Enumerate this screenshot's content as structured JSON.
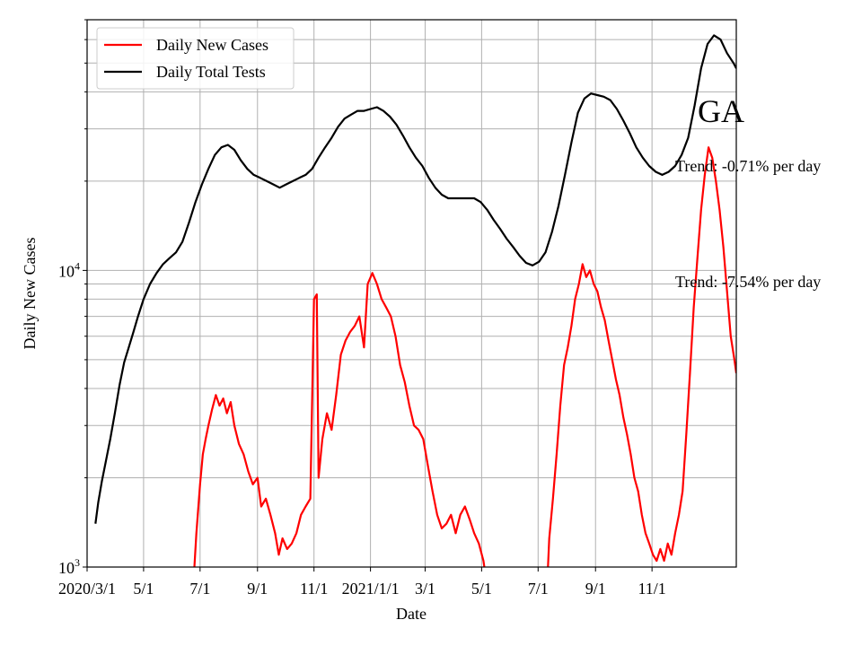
{
  "chart_data": {
    "type": "line",
    "title": "",
    "panel_label": "GA",
    "xlabel": "Date",
    "ylabel": "Daily New Cases",
    "y_scale": "log",
    "ylim": [
      1000,
      70000
    ],
    "xlim": [
      "2020-03-01",
      "2022-01-31"
    ],
    "grid": true,
    "grid_minor_y": true,
    "legend_position": "top-left",
    "x_ticks": [
      {
        "date": "2020-03-01",
        "label": "2020/3/1"
      },
      {
        "date": "2020-05-01",
        "label": "5/1"
      },
      {
        "date": "2020-07-01",
        "label": "7/1"
      },
      {
        "date": "2020-09-01",
        "label": "9/1"
      },
      {
        "date": "2020-11-01",
        "label": "11/1"
      },
      {
        "date": "2021-01-01",
        "label": "2021/1/1"
      },
      {
        "date": "2021-03-01",
        "label": "3/1"
      },
      {
        "date": "2021-05-01",
        "label": "5/1"
      },
      {
        "date": "2021-07-01",
        "label": "7/1"
      },
      {
        "date": "2021-09-01",
        "label": "9/1"
      },
      {
        "date": "2021-11-01",
        "label": "11/1"
      }
    ],
    "y_ticks": [
      {
        "value": 1000,
        "base": "10",
        "exp": "3"
      },
      {
        "value": 10000,
        "base": "10",
        "exp": "4"
      }
    ],
    "annotations": [
      {
        "text": "Trend: -0.71% per day",
        "series": "Daily Total Tests"
      },
      {
        "text": "Trend: -7.54% per day",
        "series": "Daily New Cases"
      }
    ],
    "series": [
      {
        "name": "Daily New Cases",
        "color": "#ff0000",
        "points": [
          [
            "2020-06-24",
            900
          ],
          [
            "2020-06-27",
            1300
          ],
          [
            "2020-07-01",
            1900
          ],
          [
            "2020-07-04",
            2400
          ],
          [
            "2020-07-07",
            2700
          ],
          [
            "2020-07-10",
            3000
          ],
          [
            "2020-07-14",
            3400
          ],
          [
            "2020-07-18",
            3800
          ],
          [
            "2020-07-22",
            3500
          ],
          [
            "2020-07-26",
            3700
          ],
          [
            "2020-07-30",
            3300
          ],
          [
            "2020-08-03",
            3600
          ],
          [
            "2020-08-07",
            3000
          ],
          [
            "2020-08-12",
            2600
          ],
          [
            "2020-08-17",
            2400
          ],
          [
            "2020-08-22",
            2100
          ],
          [
            "2020-08-27",
            1900
          ],
          [
            "2020-09-01",
            2000
          ],
          [
            "2020-09-05",
            1600
          ],
          [
            "2020-09-10",
            1700
          ],
          [
            "2020-09-15",
            1500
          ],
          [
            "2020-09-20",
            1300
          ],
          [
            "2020-09-24",
            1100
          ],
          [
            "2020-09-28",
            1250
          ],
          [
            "2020-10-03",
            1150
          ],
          [
            "2020-10-08",
            1200
          ],
          [
            "2020-10-13",
            1300
          ],
          [
            "2020-10-18",
            1500
          ],
          [
            "2020-10-23",
            1600
          ],
          [
            "2020-10-28",
            1700
          ],
          [
            "2020-11-01",
            8000
          ],
          [
            "2020-11-04",
            8300
          ],
          [
            "2020-11-06",
            2000
          ],
          [
            "2020-11-10",
            2700
          ],
          [
            "2020-11-15",
            3300
          ],
          [
            "2020-11-20",
            2900
          ],
          [
            "2020-11-25",
            3800
          ],
          [
            "2020-11-30",
            5200
          ],
          [
            "2020-12-05",
            5800
          ],
          [
            "2020-12-10",
            6200
          ],
          [
            "2020-12-15",
            6500
          ],
          [
            "2020-12-20",
            7000
          ],
          [
            "2020-12-25",
            5500
          ],
          [
            "2020-12-29",
            9000
          ],
          [
            "2021-01-03",
            9800
          ],
          [
            "2021-01-08",
            9000
          ],
          [
            "2021-01-13",
            8000
          ],
          [
            "2021-01-18",
            7500
          ],
          [
            "2021-01-23",
            7000
          ],
          [
            "2021-01-28",
            6000
          ],
          [
            "2021-02-02",
            4800
          ],
          [
            "2021-02-07",
            4200
          ],
          [
            "2021-02-12",
            3500
          ],
          [
            "2021-02-17",
            3000
          ],
          [
            "2021-02-22",
            2900
          ],
          [
            "2021-02-27",
            2700
          ],
          [
            "2021-03-04",
            2200
          ],
          [
            "2021-03-09",
            1800
          ],
          [
            "2021-03-14",
            1500
          ],
          [
            "2021-03-19",
            1350
          ],
          [
            "2021-03-24",
            1400
          ],
          [
            "2021-03-29",
            1500
          ],
          [
            "2021-04-03",
            1300
          ],
          [
            "2021-04-08",
            1500
          ],
          [
            "2021-04-13",
            1600
          ],
          [
            "2021-04-18",
            1450
          ],
          [
            "2021-04-23",
            1300
          ],
          [
            "2021-04-28",
            1200
          ],
          [
            "2021-05-03",
            1050
          ],
          [
            "2021-05-05",
            950
          ],
          [
            "2021-07-11",
            900
          ],
          [
            "2021-07-13",
            1250
          ],
          [
            "2021-07-17",
            1700
          ],
          [
            "2021-07-21",
            2400
          ],
          [
            "2021-07-25",
            3500
          ],
          [
            "2021-07-29",
            4800
          ],
          [
            "2021-08-02",
            5500
          ],
          [
            "2021-08-06",
            6500
          ],
          [
            "2021-08-10",
            8000
          ],
          [
            "2021-08-14",
            9000
          ],
          [
            "2021-08-18",
            10500
          ],
          [
            "2021-08-22",
            9500
          ],
          [
            "2021-08-26",
            10000
          ],
          [
            "2021-08-30",
            9000
          ],
          [
            "2021-09-03",
            8500
          ],
          [
            "2021-09-07",
            7500
          ],
          [
            "2021-09-11",
            6800
          ],
          [
            "2021-09-15",
            5800
          ],
          [
            "2021-09-19",
            5000
          ],
          [
            "2021-09-23",
            4300
          ],
          [
            "2021-09-27",
            3800
          ],
          [
            "2021-10-01",
            3200
          ],
          [
            "2021-10-05",
            2800
          ],
          [
            "2021-10-09",
            2400
          ],
          [
            "2021-10-13",
            2000
          ],
          [
            "2021-10-17",
            1800
          ],
          [
            "2021-10-21",
            1500
          ],
          [
            "2021-10-25",
            1300
          ],
          [
            "2021-10-29",
            1200
          ],
          [
            "2021-11-02",
            1100
          ],
          [
            "2021-11-06",
            1050
          ],
          [
            "2021-11-10",
            1150
          ],
          [
            "2021-11-14",
            1050
          ],
          [
            "2021-11-18",
            1200
          ],
          [
            "2021-11-22",
            1100
          ],
          [
            "2021-11-26",
            1300
          ],
          [
            "2021-11-30",
            1500
          ],
          [
            "2021-12-04",
            1800
          ],
          [
            "2021-12-08",
            2800
          ],
          [
            "2021-12-12",
            4500
          ],
          [
            "2021-12-16",
            7500
          ],
          [
            "2021-12-20",
            11000
          ],
          [
            "2021-12-24",
            16000
          ],
          [
            "2021-12-28",
            21000
          ],
          [
            "2022-01-01",
            26000
          ],
          [
            "2022-01-05",
            24000
          ],
          [
            "2022-01-09",
            20000
          ],
          [
            "2022-01-13",
            16000
          ],
          [
            "2022-01-17",
            12000
          ],
          [
            "2022-01-21",
            8500
          ],
          [
            "2022-01-25",
            6000
          ],
          [
            "2022-01-29",
            5000
          ],
          [
            "2022-01-31",
            4500
          ]
        ]
      },
      {
        "name": "Daily Total Tests",
        "color": "#000000",
        "points": [
          [
            "2020-03-10",
            1400
          ],
          [
            "2020-03-13",
            1650
          ],
          [
            "2020-03-17",
            1950
          ],
          [
            "2020-03-21",
            2250
          ],
          [
            "2020-03-26",
            2700
          ],
          [
            "2020-03-31",
            3300
          ],
          [
            "2020-04-05",
            4100
          ],
          [
            "2020-04-10",
            4900
          ],
          [
            "2020-04-15",
            5500
          ],
          [
            "2020-04-20",
            6200
          ],
          [
            "2020-04-25",
            7000
          ],
          [
            "2020-05-01",
            8000
          ],
          [
            "2020-05-08",
            9000
          ],
          [
            "2020-05-15",
            9800
          ],
          [
            "2020-05-22",
            10500
          ],
          [
            "2020-05-29",
            11000
          ],
          [
            "2020-06-05",
            11500
          ],
          [
            "2020-06-12",
            12500
          ],
          [
            "2020-06-19",
            14500
          ],
          [
            "2020-06-26",
            17000
          ],
          [
            "2020-07-03",
            19500
          ],
          [
            "2020-07-10",
            22000
          ],
          [
            "2020-07-17",
            24500
          ],
          [
            "2020-07-24",
            26000
          ],
          [
            "2020-07-31",
            26500
          ],
          [
            "2020-08-07",
            25500
          ],
          [
            "2020-08-14",
            23500
          ],
          [
            "2020-08-21",
            22000
          ],
          [
            "2020-08-28",
            21000
          ],
          [
            "2020-09-04",
            20500
          ],
          [
            "2020-09-11",
            20000
          ],
          [
            "2020-09-18",
            19500
          ],
          [
            "2020-09-25",
            19000
          ],
          [
            "2020-10-02",
            19500
          ],
          [
            "2020-10-09",
            20000
          ],
          [
            "2020-10-16",
            20500
          ],
          [
            "2020-10-23",
            21000
          ],
          [
            "2020-10-30",
            22000
          ],
          [
            "2020-11-06",
            24000
          ],
          [
            "2020-11-13",
            26000
          ],
          [
            "2020-11-20",
            28000
          ],
          [
            "2020-11-27",
            30500
          ],
          [
            "2020-12-04",
            32500
          ],
          [
            "2020-12-11",
            33500
          ],
          [
            "2020-12-18",
            34500
          ],
          [
            "2020-12-25",
            34500
          ],
          [
            "2021-01-01",
            35000
          ],
          [
            "2021-01-08",
            35500
          ],
          [
            "2021-01-15",
            34500
          ],
          [
            "2021-01-22",
            33000
          ],
          [
            "2021-01-29",
            31000
          ],
          [
            "2021-02-05",
            28500
          ],
          [
            "2021-02-12",
            26000
          ],
          [
            "2021-02-19",
            24000
          ],
          [
            "2021-02-26",
            22500
          ],
          [
            "2021-03-05",
            20500
          ],
          [
            "2021-03-12",
            19000
          ],
          [
            "2021-03-19",
            18000
          ],
          [
            "2021-03-26",
            17500
          ],
          [
            "2021-04-02",
            17500
          ],
          [
            "2021-04-09",
            17500
          ],
          [
            "2021-04-16",
            17500
          ],
          [
            "2021-04-23",
            17500
          ],
          [
            "2021-04-30",
            17000
          ],
          [
            "2021-05-07",
            16000
          ],
          [
            "2021-05-14",
            14800
          ],
          [
            "2021-05-21",
            13800
          ],
          [
            "2021-05-28",
            12800
          ],
          [
            "2021-06-04",
            12000
          ],
          [
            "2021-06-11",
            11200
          ],
          [
            "2021-06-18",
            10600
          ],
          [
            "2021-06-25",
            10400
          ],
          [
            "2021-07-02",
            10700
          ],
          [
            "2021-07-09",
            11500
          ],
          [
            "2021-07-16",
            13500
          ],
          [
            "2021-07-23",
            16500
          ],
          [
            "2021-07-30",
            21000
          ],
          [
            "2021-08-06",
            27000
          ],
          [
            "2021-08-13",
            34000
          ],
          [
            "2021-08-20",
            38000
          ],
          [
            "2021-08-27",
            39500
          ],
          [
            "2021-09-03",
            39000
          ],
          [
            "2021-09-10",
            38500
          ],
          [
            "2021-09-17",
            37500
          ],
          [
            "2021-09-24",
            35000
          ],
          [
            "2021-10-01",
            32000
          ],
          [
            "2021-10-08",
            29000
          ],
          [
            "2021-10-15",
            26000
          ],
          [
            "2021-10-22",
            24000
          ],
          [
            "2021-10-29",
            22500
          ],
          [
            "2021-11-05",
            21500
          ],
          [
            "2021-11-12",
            21000
          ],
          [
            "2021-11-19",
            21500
          ],
          [
            "2021-11-26",
            22500
          ],
          [
            "2021-12-03",
            24500
          ],
          [
            "2021-12-10",
            28000
          ],
          [
            "2021-12-17",
            36000
          ],
          [
            "2021-12-24",
            48000
          ],
          [
            "2021-12-31",
            58000
          ],
          [
            "2022-01-07",
            62000
          ],
          [
            "2022-01-14",
            60000
          ],
          [
            "2022-01-21",
            54000
          ],
          [
            "2022-01-28",
            50000
          ],
          [
            "2022-01-31",
            48000
          ]
        ]
      }
    ]
  }
}
